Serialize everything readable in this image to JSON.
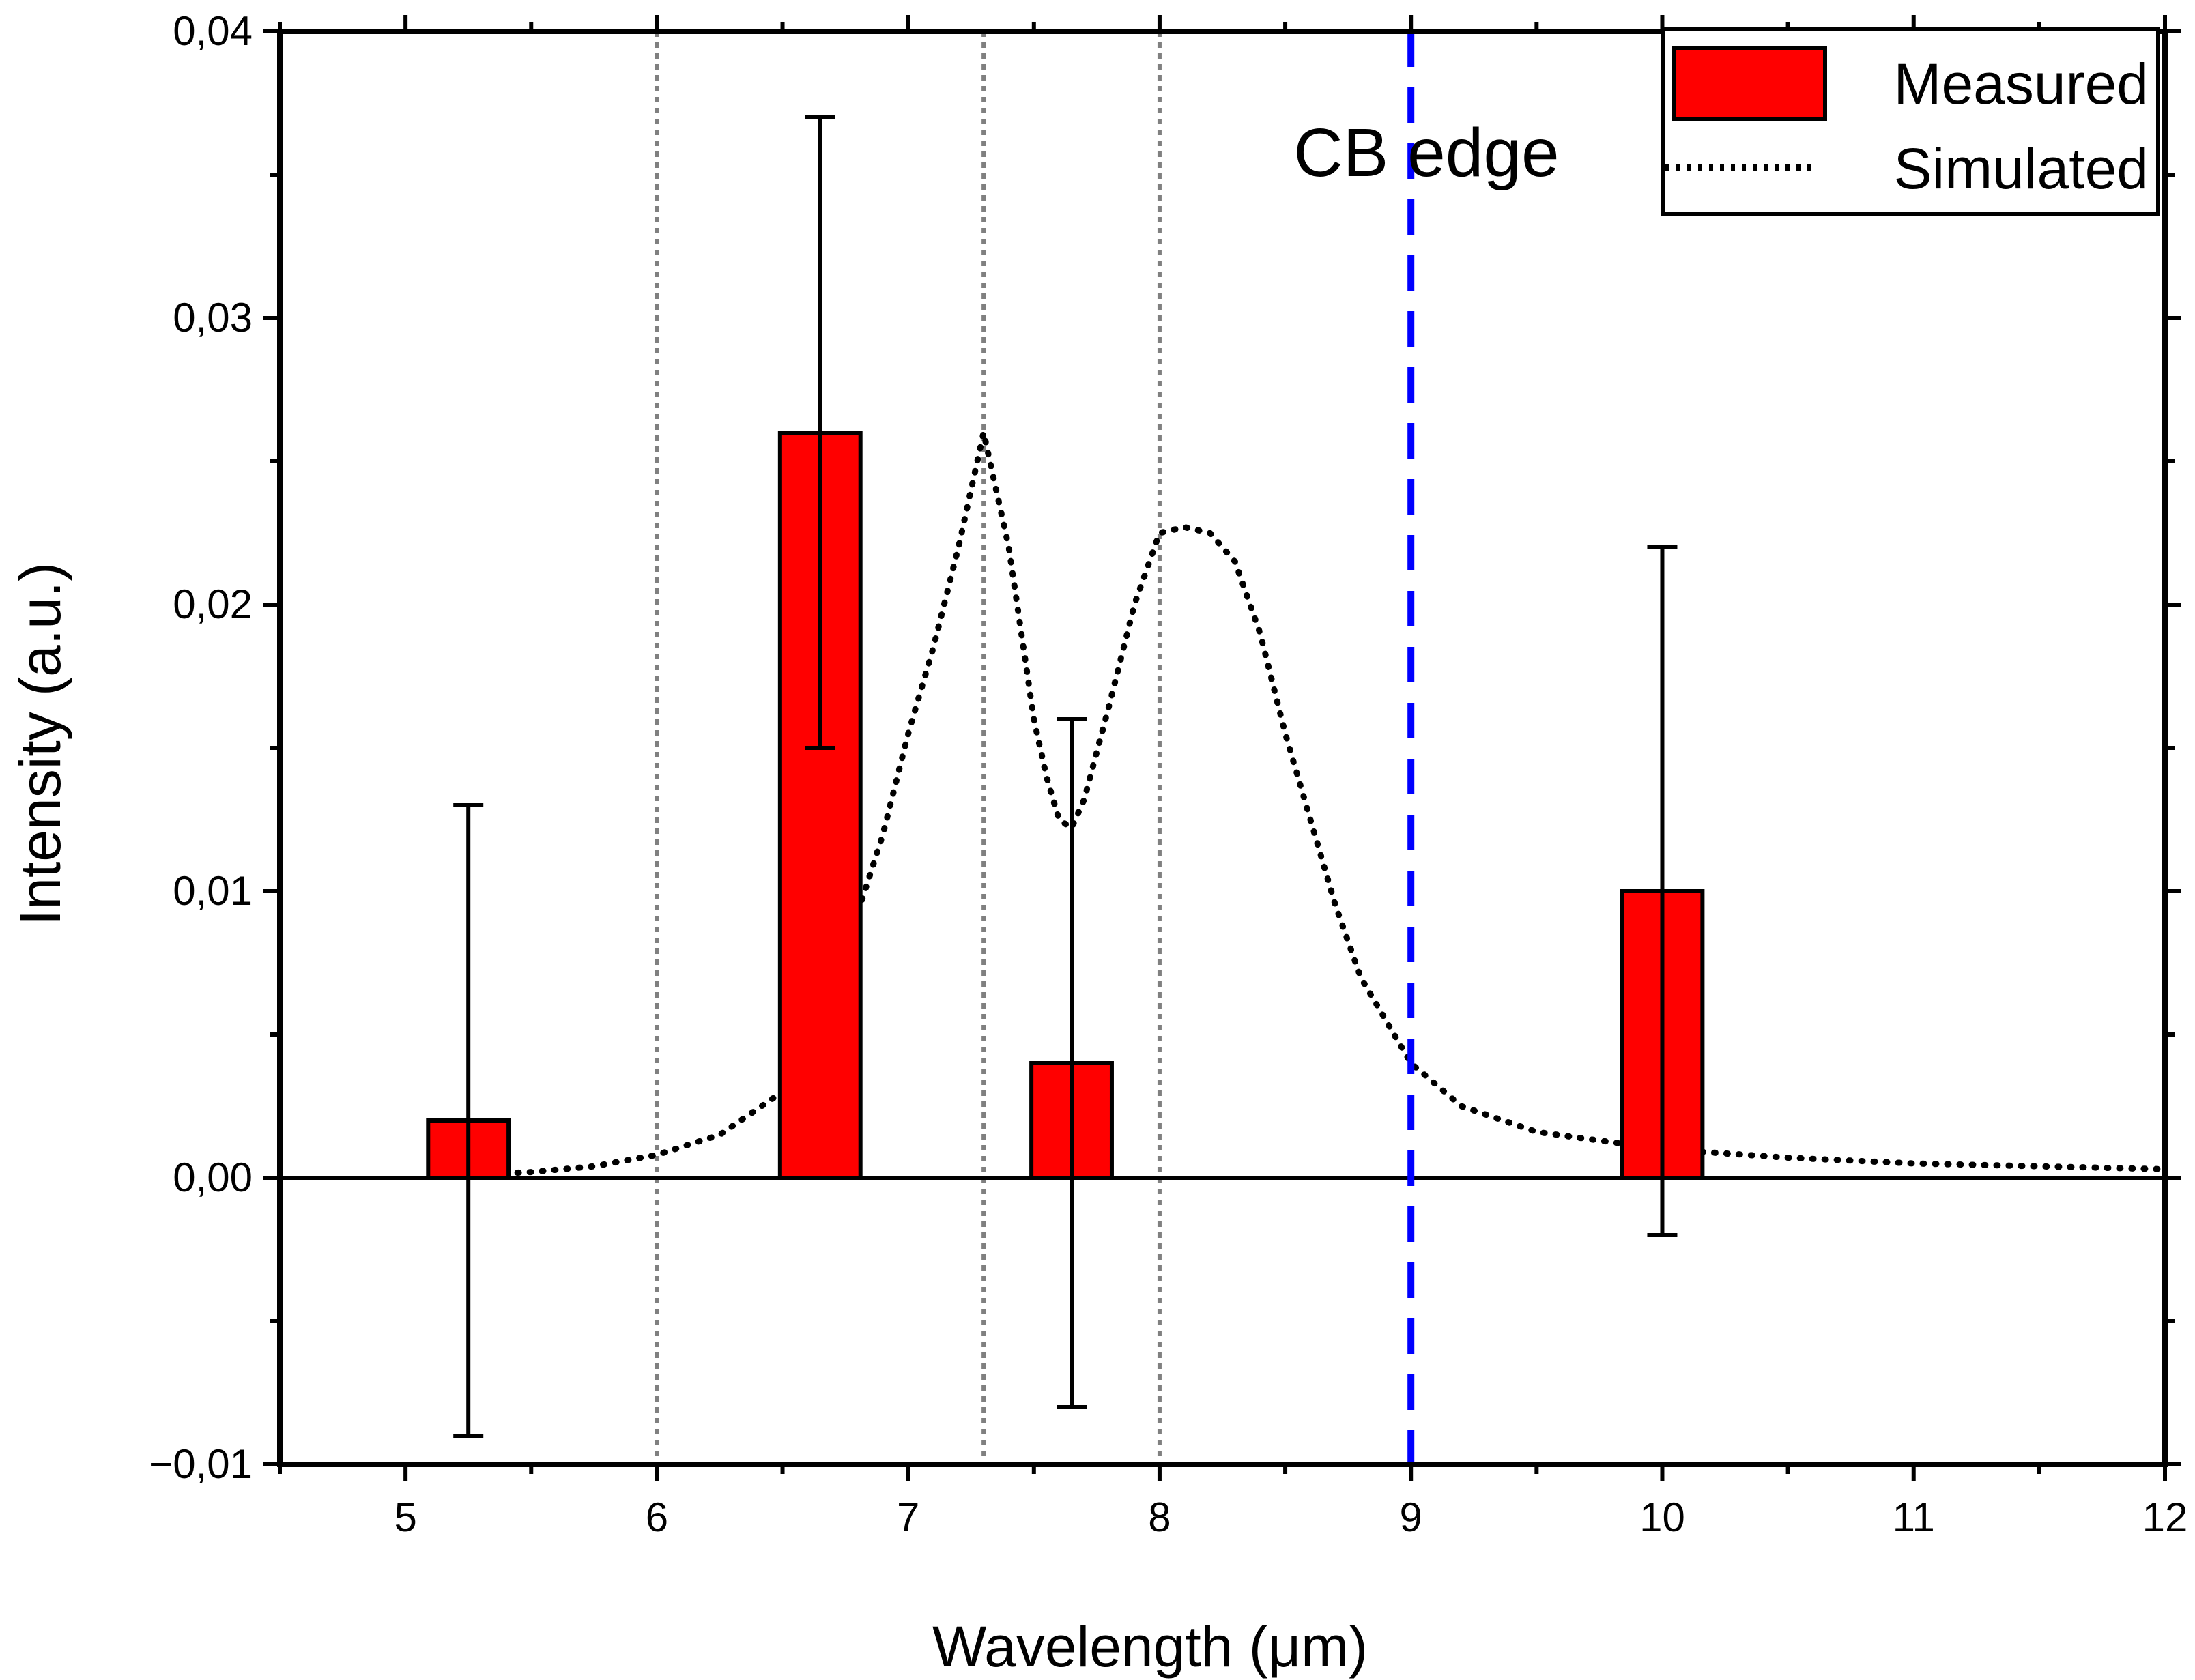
{
  "colors": {
    "bar": "#ff0000",
    "edge": "#0000ff",
    "ref": "#808080",
    "axis": "#000000"
  },
  "chart_data": {
    "type": "bar",
    "xlabel": "Wavelength (μm)",
    "ylabel": "Intensity (a.u.)",
    "xlim": [
      4.5,
      12
    ],
    "ylim": [
      -0.01,
      0.04
    ],
    "xticks": [
      5,
      6,
      7,
      8,
      9,
      10,
      11,
      12
    ],
    "xtick_labels": [
      "5",
      "6",
      "7",
      "8",
      "9",
      "10",
      "11",
      "12"
    ],
    "yticks": [
      -0.01,
      0,
      0.01,
      0.02,
      0.03,
      0.04
    ],
    "ytick_labels": [
      "−0,01",
      "0,00",
      "0,01",
      "0,02",
      "0,03",
      "0,04"
    ],
    "grid": false,
    "legend": {
      "position": "top-right",
      "entries": [
        "Measured",
        "Simulated"
      ]
    },
    "annotation": {
      "text": "CB edge",
      "x": 9
    },
    "reference_lines": [
      6,
      7.3,
      8
    ],
    "edge_line": 9,
    "series": [
      {
        "name": "Measured",
        "kind": "bar",
        "bar_width": 0.32,
        "x": [
          5.25,
          6.65,
          7.65,
          10
        ],
        "values": [
          0.002,
          0.026,
          0.004,
          0.01
        ],
        "error_low": [
          -0.009,
          0.015,
          -0.008,
          -0.002
        ],
        "error_high": [
          0.013,
          0.037,
          0.016,
          0.022
        ]
      },
      {
        "name": "Simulated",
        "kind": "line",
        "style": "dotted",
        "x": [
          5.25,
          5.5,
          5.75,
          6.0,
          6.25,
          6.5,
          6.7,
          6.9,
          7.0,
          7.1,
          7.2,
          7.3,
          7.4,
          7.5,
          7.55,
          7.6,
          7.65,
          7.7,
          7.8,
          7.9,
          8.0,
          8.1,
          8.2,
          8.3,
          8.4,
          8.5,
          8.6,
          8.7,
          8.8,
          9.0,
          9.2,
          9.5,
          10.0,
          10.5,
          11.0,
          11.5,
          12.0
        ],
        "values": [
          0.0001,
          0.0002,
          0.0004,
          0.0008,
          0.0015,
          0.003,
          0.0065,
          0.012,
          0.0155,
          0.0185,
          0.022,
          0.026,
          0.022,
          0.016,
          0.014,
          0.0125,
          0.0122,
          0.0132,
          0.0165,
          0.02,
          0.0225,
          0.0227,
          0.0225,
          0.0215,
          0.019,
          0.0155,
          0.0125,
          0.0095,
          0.007,
          0.004,
          0.0025,
          0.0016,
          0.001,
          0.0007,
          0.0005,
          0.0004,
          0.0003
        ]
      }
    ]
  }
}
